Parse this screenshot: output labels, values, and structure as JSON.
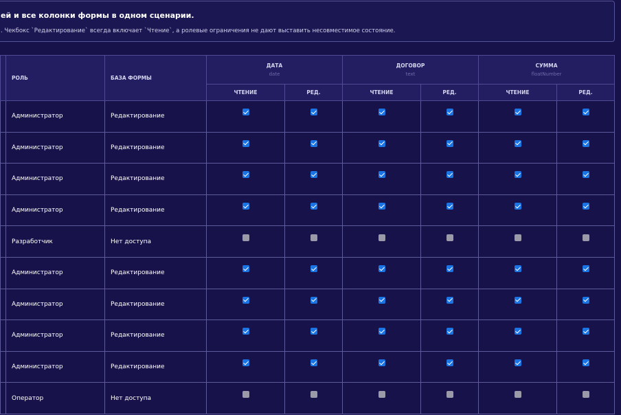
{
  "header": {
    "title": "ей и все колонки формы в одном сценарии.",
    "subtitle": ". Чекбокс `Редактирование` всегда включает `Чтение`, а ролевые ограничения не дают выставить несовместимое состояние."
  },
  "table": {
    "role_header": "РОЛЬ",
    "base_header": "БАЗА ФОРМЫ",
    "groups": [
      {
        "label": "ДАТА",
        "type": "date",
        "columns": [
          "ЧТЕНИЕ",
          "РЕД."
        ]
      },
      {
        "label": "ДОГОВОР",
        "type": "text",
        "columns": [
          "ЧТЕНИЕ",
          "РЕД."
        ]
      },
      {
        "label": "СУММА",
        "type": "floatNumber",
        "columns": [
          "ЧТЕНИЕ",
          "РЕД."
        ]
      }
    ],
    "rows": [
      {
        "role": "Администратор",
        "base": "Редактирование",
        "access": [
          true,
          true,
          true,
          true,
          true,
          true
        ]
      },
      {
        "role": "Администратор",
        "base": "Редактирование",
        "access": [
          true,
          true,
          true,
          true,
          true,
          true
        ]
      },
      {
        "role": "Администратор",
        "base": "Редактирование",
        "access": [
          true,
          true,
          true,
          true,
          true,
          true
        ]
      },
      {
        "role": "Администратор",
        "base": "Редактирование",
        "access": [
          true,
          true,
          true,
          true,
          true,
          true
        ]
      },
      {
        "role": "Разработчик",
        "base": "Нет доступа",
        "access": [
          false,
          false,
          false,
          false,
          false,
          false
        ]
      },
      {
        "role": "Администратор",
        "base": "Редактирование",
        "access": [
          true,
          true,
          true,
          true,
          true,
          true
        ]
      },
      {
        "role": "Администратор",
        "base": "Редактирование",
        "access": [
          true,
          true,
          true,
          true,
          true,
          true
        ]
      },
      {
        "role": "Администратор",
        "base": "Редактирование",
        "access": [
          true,
          true,
          true,
          true,
          true,
          true
        ]
      },
      {
        "role": "Администратор",
        "base": "Редактирование",
        "access": [
          true,
          true,
          true,
          true,
          true,
          true
        ]
      },
      {
        "role": "Оператор",
        "base": "Нет доступа",
        "access": [
          false,
          false,
          false,
          false,
          false,
          false
        ]
      }
    ]
  }
}
